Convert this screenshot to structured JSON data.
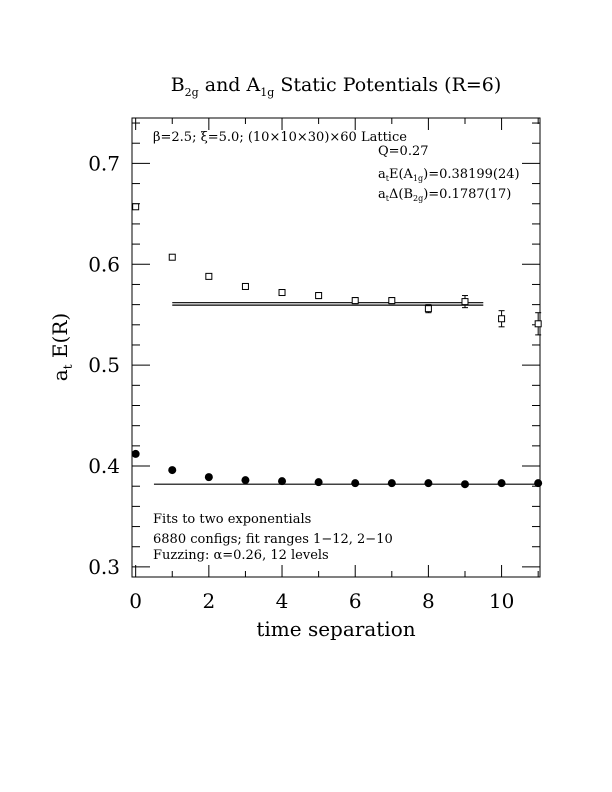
{
  "chart_data": {
    "type": "scatter",
    "title_main": "B",
    "title_sub1": "2g",
    "title_mid": " and A",
    "title_sub2": "1g",
    "title_end": " Static Potentials (R=6)",
    "xlabel": "time separation",
    "ylabel_main": "a",
    "ylabel_sub": "t",
    "ylabel_rest": " E(R)",
    "xlim": [
      -0.1,
      11.05
    ],
    "ylim": [
      0.29,
      0.745
    ],
    "x_ticks": [
      0,
      2,
      4,
      6,
      8,
      10
    ],
    "y_ticks": [
      0.3,
      0.4,
      0.5,
      0.6,
      0.7
    ],
    "x_tick_labels": [
      "0",
      "2",
      "4",
      "6",
      "8",
      "10"
    ],
    "y_tick_labels": [
      "0.3",
      "0.4",
      "0.5",
      "0.6",
      "0.7"
    ],
    "series": [
      {
        "marker": "open-square",
        "points": [
          {
            "x": 0,
            "y": 0.657,
            "err": 0.002
          },
          {
            "x": 1,
            "y": 0.607,
            "err": 0.002
          },
          {
            "x": 2,
            "y": 0.588,
            "err": 0.002
          },
          {
            "x": 3,
            "y": 0.578,
            "err": 0.002
          },
          {
            "x": 4,
            "y": 0.572,
            "err": 0.002
          },
          {
            "x": 5,
            "y": 0.569,
            "err": 0.003
          },
          {
            "x": 6,
            "y": 0.564,
            "err": 0.003
          },
          {
            "x": 7,
            "y": 0.564,
            "err": 0.003
          },
          {
            "x": 8,
            "y": 0.556,
            "err": 0.004
          },
          {
            "x": 9,
            "y": 0.563,
            "err": 0.006
          },
          {
            "x": 10,
            "y": 0.546,
            "err": 0.008
          },
          {
            "x": 11,
            "y": 0.541,
            "err": 0.011
          }
        ],
        "fit": {
          "x_start": 1,
          "x_end": 12,
          "y_center": 0.5607,
          "y_band": 0.0024
        }
      },
      {
        "marker": "filled-circle",
        "points": [
          {
            "x": 0,
            "y": 0.412,
            "err": 0.001
          },
          {
            "x": 1,
            "y": 0.396,
            "err": 0.001
          },
          {
            "x": 2,
            "y": 0.389,
            "err": 0.001
          },
          {
            "x": 3,
            "y": 0.386,
            "err": 0.001
          },
          {
            "x": 4,
            "y": 0.385,
            "err": 0.001
          },
          {
            "x": 5,
            "y": 0.384,
            "err": 0.001
          },
          {
            "x": 6,
            "y": 0.383,
            "err": 0.001
          },
          {
            "x": 7,
            "y": 0.383,
            "err": 0.001
          },
          {
            "x": 8,
            "y": 0.383,
            "err": 0.001
          },
          {
            "x": 9,
            "y": 0.382,
            "err": 0.001
          },
          {
            "x": 10,
            "y": 0.383,
            "err": 0.001
          },
          {
            "x": 11,
            "y": 0.383,
            "err": 0.001
          }
        ],
        "fit": {
          "x_start": 0.5,
          "x_end": 11.05,
          "y_center": 0.382,
          "y_band": 0
        }
      }
    ],
    "annotations": {
      "lattice": "β=2.5; ξ=5.0; (10×10×30)×60 Lattice",
      "q": "Q=0.27",
      "a1g_pre": "a",
      "a1g_sub_t": "t",
      "a1g_mid": "E(A",
      "a1g_sub": "1g",
      "a1g_val": ")=0.38199(24)",
      "b2g_pre": "a",
      "b2g_sub_t": "t",
      "b2g_mid": "Δ(B",
      "b2g_sub": "2g",
      "b2g_val": ")=0.1787(17)",
      "fits": "Fits to two exponentials",
      "configs": "6880 configs; fit ranges 1−12, 2−10",
      "fuzzing": "Fuzzing: α=0.26, 12 levels"
    }
  }
}
